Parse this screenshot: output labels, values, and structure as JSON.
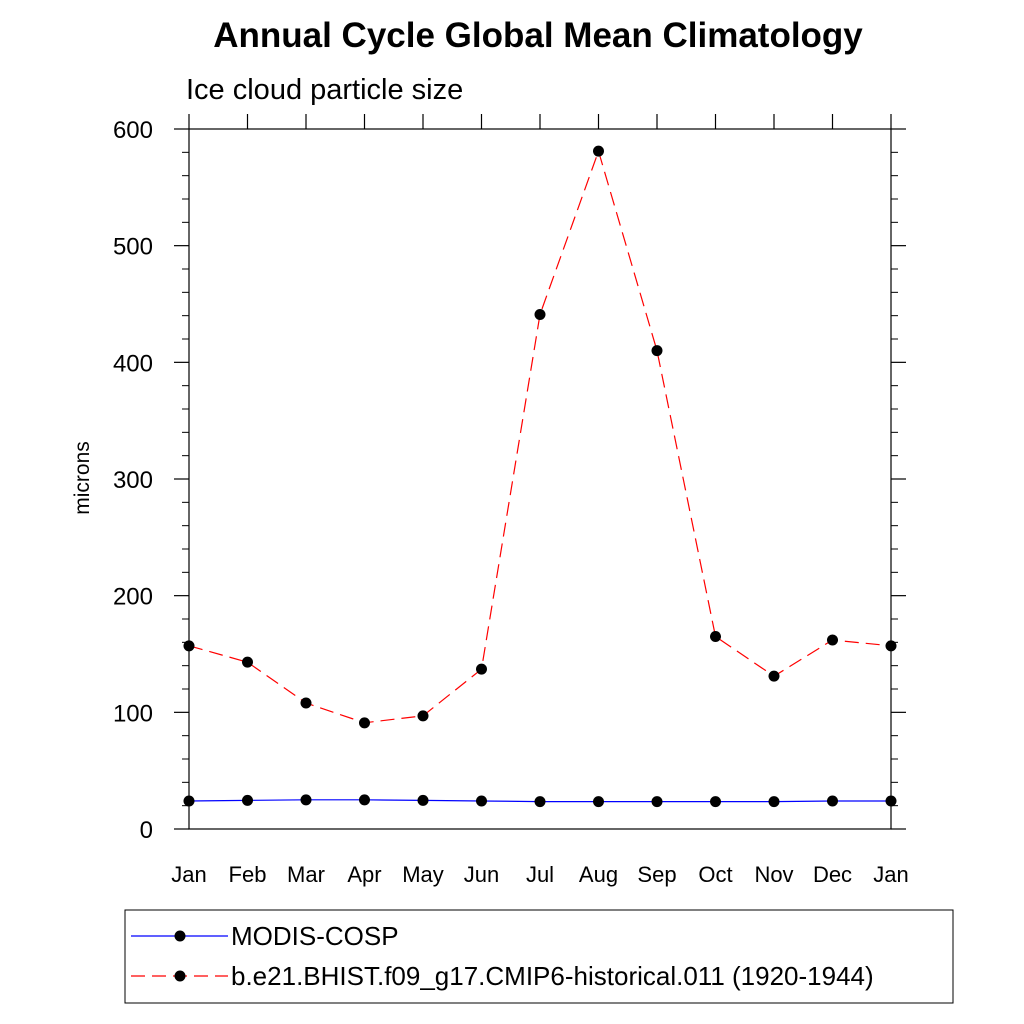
{
  "chart_data": {
    "type": "line",
    "title": "Annual Cycle Global Mean Climatology",
    "subtitle": "Ice cloud particle size",
    "xlabel": "",
    "ylabel": "microns",
    "categories": [
      "Jan",
      "Feb",
      "Mar",
      "Apr",
      "May",
      "Jun",
      "Jul",
      "Aug",
      "Sep",
      "Oct",
      "Nov",
      "Dec",
      "Jan"
    ],
    "ylim": [
      0,
      600
    ],
    "yticks": [
      0,
      100,
      200,
      300,
      400,
      500,
      600
    ],
    "ytick_labels": [
      "0",
      "100",
      "200",
      "300",
      "400",
      "500",
      "600"
    ],
    "grid": false,
    "legend_position": "bottom",
    "series": [
      {
        "name": "MODIS-COSP",
        "color": "#0000ff",
        "line_style": "solid",
        "marker": "filled-circle",
        "values": [
          24,
          24.5,
          25,
          25,
          24.5,
          24,
          23.5,
          23.5,
          23.5,
          23.5,
          23.5,
          24,
          24
        ]
      },
      {
        "name": "b.e21.BHIST.f09_g17.CMIP6-historical.011 (1920-1944)",
        "color": "#ff0000",
        "line_style": "dashed",
        "marker": "filled-circle",
        "values": [
          157,
          143,
          108,
          91,
          97,
          137,
          441,
          581,
          410,
          165,
          131,
          162,
          157
        ]
      }
    ]
  }
}
